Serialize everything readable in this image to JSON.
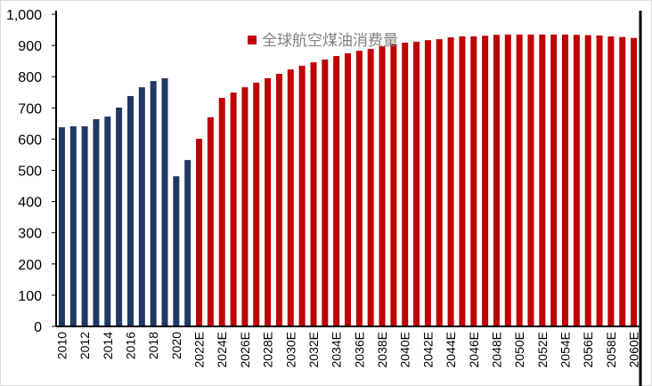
{
  "chart_data": {
    "type": "bar",
    "title": "",
    "xlabel": "",
    "ylabel": "",
    "ylim": [
      0,
      1000
    ],
    "yticks": [
      "0",
      "100",
      "200",
      "300",
      "400",
      "500",
      "600",
      "700",
      "800",
      "900",
      "1,000"
    ],
    "grid": false,
    "legend_placement": "top-center",
    "categories": [
      "2010",
      "2011",
      "2012",
      "2013",
      "2014",
      "2015",
      "2016",
      "2017",
      "2018",
      "2019",
      "2020",
      "2021",
      "2022E",
      "2023E",
      "2024E",
      "2025E",
      "2026E",
      "2027E",
      "2028E",
      "2029E",
      "2030E",
      "2031E",
      "2032E",
      "2033E",
      "2034E",
      "2035E",
      "2036E",
      "2037E",
      "2038E",
      "2039E",
      "2040E",
      "2041E",
      "2042E",
      "2043E",
      "2044E",
      "2045E",
      "2046E",
      "2047E",
      "2048E",
      "2049E",
      "2050E",
      "2051E",
      "2052E",
      "2053E",
      "2054E",
      "2055E",
      "2056E",
      "2057E",
      "2058E",
      "2059E",
      "2060E"
    ],
    "series": [
      {
        "name": "全球航空煤油消费量",
        "values": [
          638,
          641,
          641,
          664,
          672,
          701,
          738,
          766,
          786,
          795,
          481,
          533,
          601,
          670,
          732,
          749,
          766,
          781,
          795,
          809,
          823,
          835,
          846,
          855,
          866,
          875,
          883,
          889,
          897,
          903,
          909,
          912,
          917,
          920,
          926,
          929,
          929,
          931,
          934,
          935,
          935,
          935,
          935,
          935,
          935,
          934,
          933,
          932,
          929,
          927,
          924
        ]
      }
    ],
    "colors": {
      "actual": "#203864",
      "forecast": "#C00000",
      "legend_text": "#7f7f7f"
    },
    "actual_count": 12
  }
}
